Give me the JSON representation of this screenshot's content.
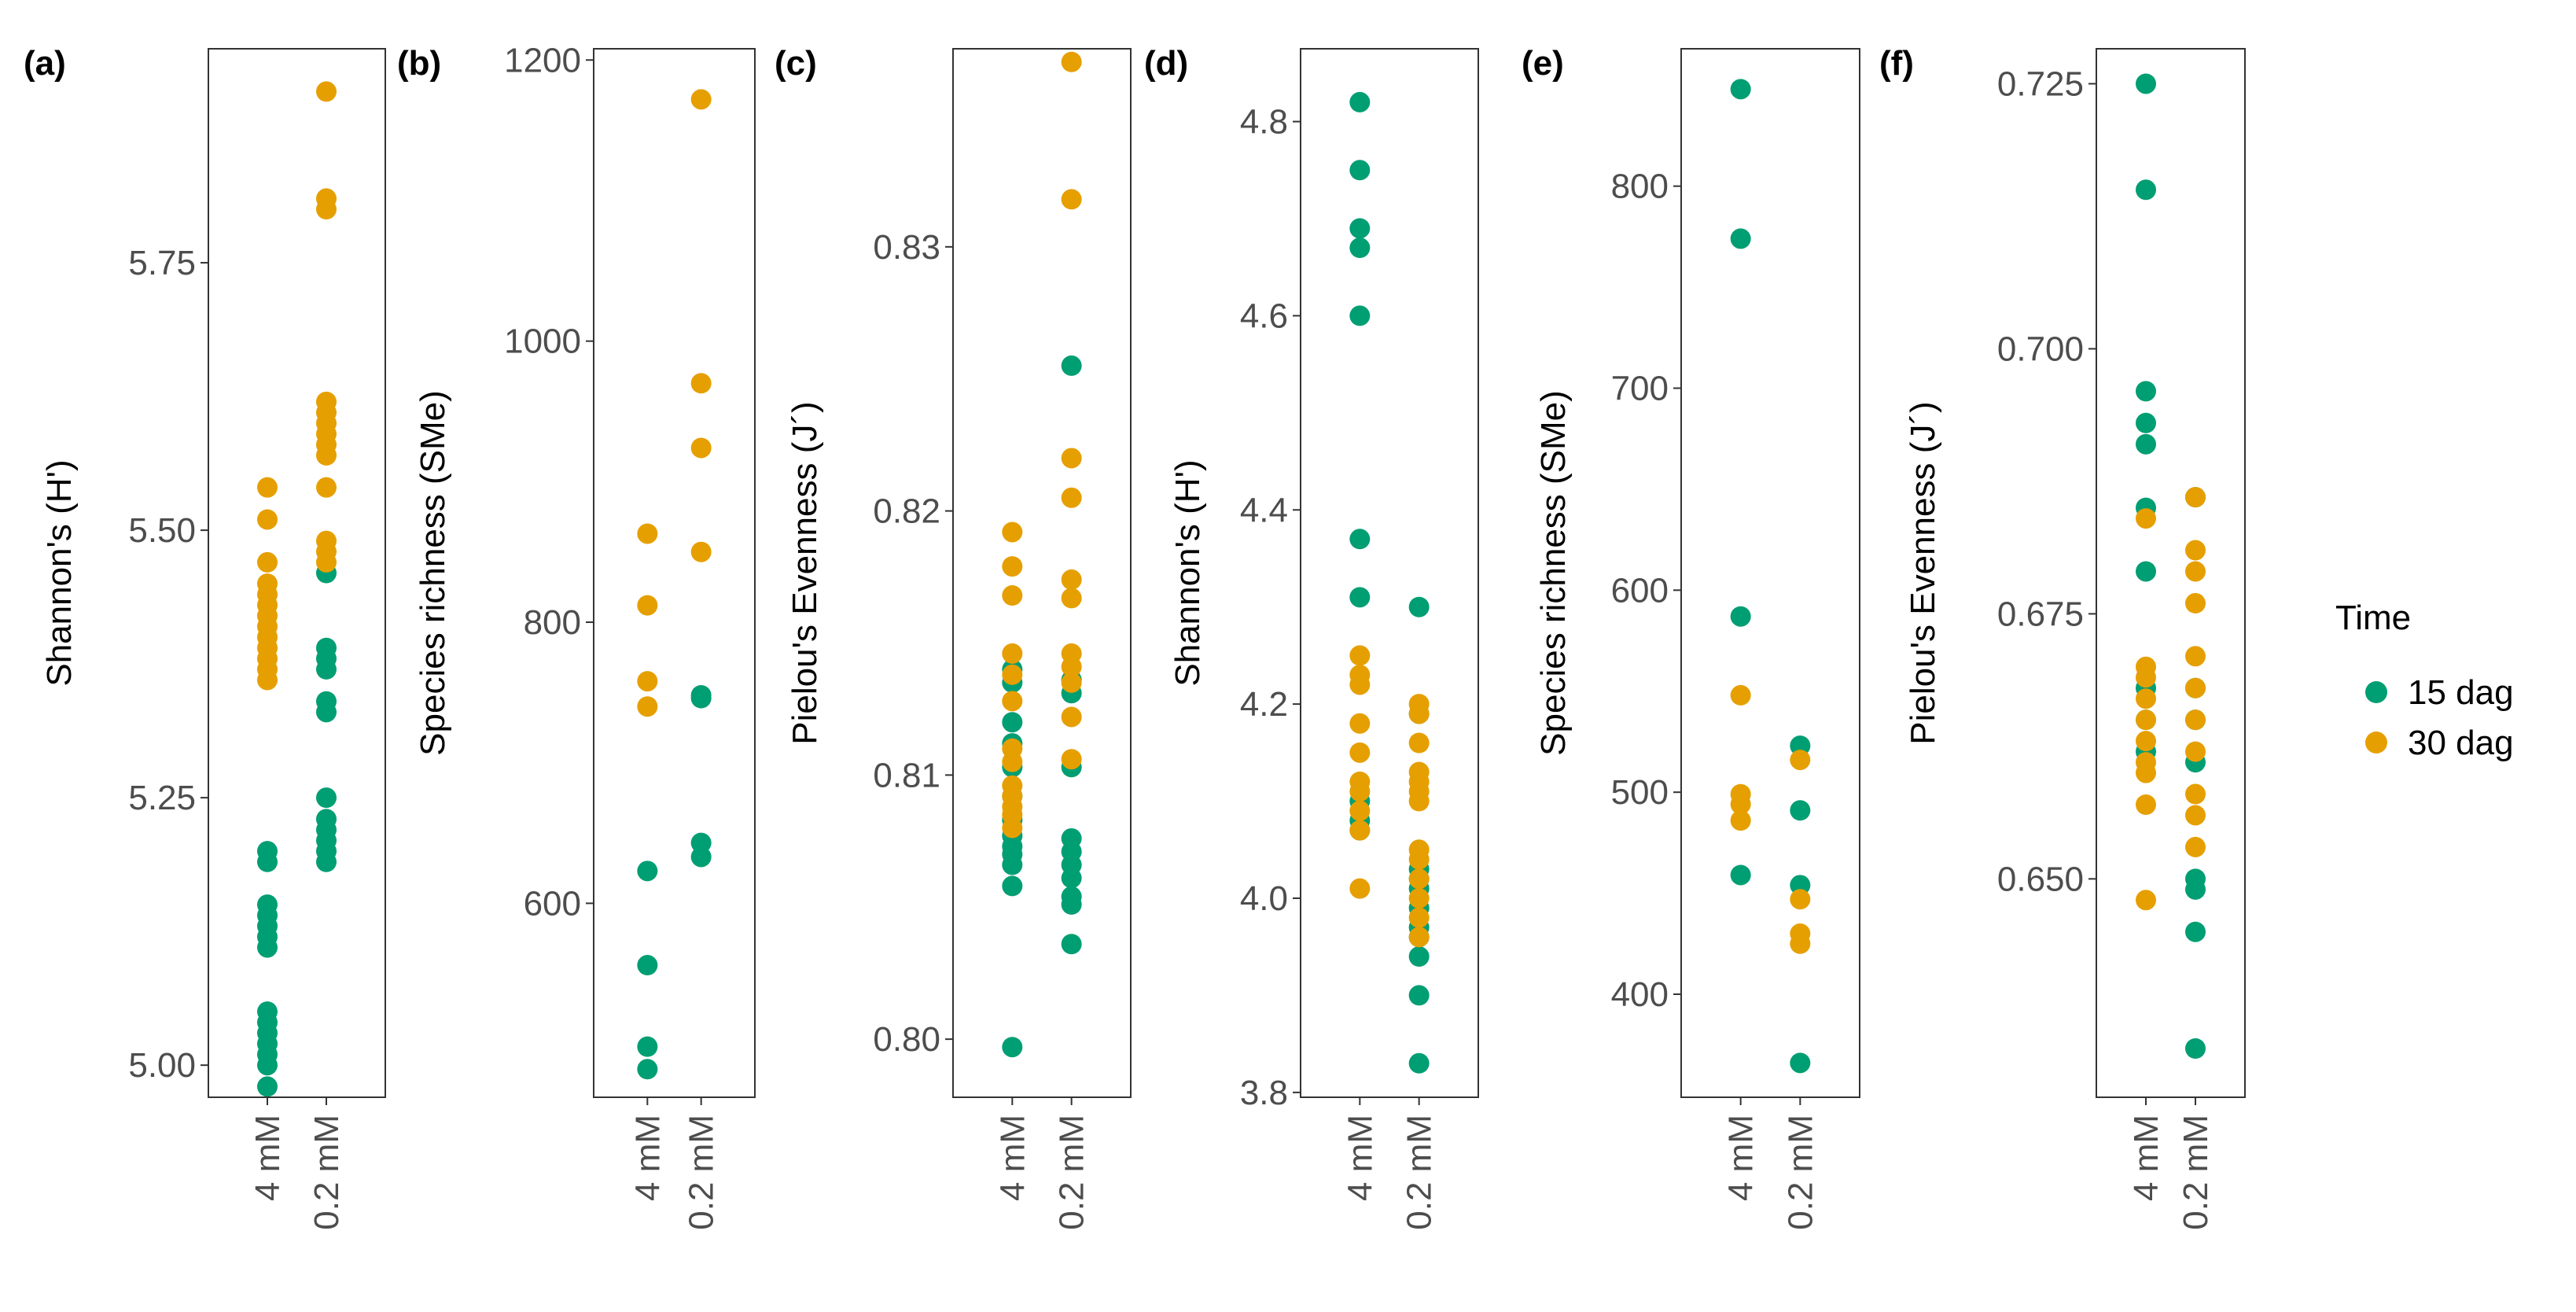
{
  "colors": {
    "15 dag": "#009e73",
    "30 dag": "#e69f00"
  },
  "legend": {
    "title": "Time",
    "entries": [
      {
        "label": "15 dag",
        "color": "#009e73"
      },
      {
        "label": "30 dag",
        "color": "#e69f00"
      }
    ]
  },
  "chart_data": [
    {
      "panel": "(a)",
      "type": "scatter",
      "ylabel": "Shannon's (H')",
      "categories": [
        "4 mM",
        "0.2 mM"
      ],
      "ylim": [
        4.97,
        5.95
      ],
      "yticks": [
        5.0,
        5.25,
        5.5,
        5.75
      ],
      "ytick_labels": [
        "5.00",
        "5.25",
        "5.50",
        "5.75"
      ],
      "series": [
        {
          "name": "15 dag",
          "values": [
            [
              4.98,
              5.0,
              5.01,
              5.02,
              5.03,
              5.04,
              5.05,
              5.11,
              5.12,
              5.13,
              5.14,
              5.15,
              5.19,
              5.2
            ],
            [
              5.19,
              5.2,
              5.21,
              5.22,
              5.23,
              5.25,
              5.33,
              5.34,
              5.37,
              5.38,
              5.39,
              5.46
            ]
          ]
        },
        {
          "name": "30 dag",
          "values": [
            [
              5.36,
              5.37,
              5.38,
              5.39,
              5.4,
              5.41,
              5.42,
              5.43,
              5.44,
              5.45,
              5.47,
              5.51,
              5.54
            ],
            [
              5.47,
              5.48,
              5.49,
              5.54,
              5.57,
              5.58,
              5.59,
              5.6,
              5.61,
              5.62,
              5.8,
              5.81,
              5.91
            ]
          ]
        }
      ]
    },
    {
      "panel": "(b)",
      "type": "scatter",
      "ylabel": "Species richness (SMe)",
      "categories": [
        "4 mM",
        "0.2 mM"
      ],
      "ylim": [
        462,
        1208
      ],
      "yticks": [
        600,
        800,
        1000,
        1200
      ],
      "ytick_labels": [
        "600",
        "800",
        "1000",
        "1200"
      ],
      "series": [
        {
          "name": "15 dag",
          "values": [
            [
              482,
              498,
              556,
              623
            ],
            [
              633,
              643,
              746,
              748
            ]
          ]
        },
        {
          "name": "30 dag",
          "values": [
            [
              740,
              758,
              812,
              863
            ],
            [
              850,
              924,
              970,
              1172
            ]
          ]
        }
      ]
    },
    {
      "panel": "(c)",
      "type": "scatter",
      "ylabel": "Pielou's Evenness (J´)",
      "categories": [
        "4 mM",
        "0.2 mM"
      ],
      "ylim": [
        0.7978,
        0.8375
      ],
      "yticks": [
        0.8,
        0.81,
        0.82,
        0.83
      ],
      "ytick_labels": [
        "0.80",
        "0.81",
        "0.82",
        "0.83"
      ],
      "series": [
        {
          "name": "15 dag",
          "values": [
            [
              0.7997,
              0.8058,
              0.8066,
              0.807,
              0.8073,
              0.8077,
              0.8083,
              0.8092,
              0.8103,
              0.8112,
              0.812,
              0.8135,
              0.814
            ],
            [
              0.8036,
              0.8051,
              0.8054,
              0.8061,
              0.8066,
              0.8071,
              0.8076,
              0.8103,
              0.8131,
              0.8136,
              0.8255
            ]
          ]
        },
        {
          "name": "30 dag",
          "values": [
            [
              0.808,
              0.8085,
              0.8088,
              0.8092,
              0.8096,
              0.8105,
              0.811,
              0.8128,
              0.8138,
              0.8146,
              0.8168,
              0.8179,
              0.8192
            ],
            [
              0.8106,
              0.8122,
              0.8135,
              0.8141,
              0.8146,
              0.8167,
              0.8174,
              0.8205,
              0.822,
              0.8318,
              0.837
            ]
          ]
        }
      ]
    },
    {
      "panel": "(d)",
      "type": "scatter",
      "ylabel": "Shannon's (H')",
      "categories": [
        "4 mM",
        "0.2 mM"
      ],
      "ylim": [
        3.795,
        4.875
      ],
      "yticks": [
        3.8,
        4.0,
        4.2,
        4.4,
        4.6,
        4.8
      ],
      "ytick_labels": [
        "3.8",
        "4.0",
        "4.2",
        "4.4",
        "4.6",
        "4.8"
      ],
      "series": [
        {
          "name": "15 dag",
          "values": [
            [
              4.07,
              4.08,
              4.1,
              4.31,
              4.37,
              4.6,
              4.67,
              4.69,
              4.75,
              4.82
            ],
            [
              3.83,
              3.9,
              3.94,
              3.96,
              3.97,
              3.99,
              4.01,
              4.02,
              4.03,
              4.19,
              4.3
            ]
          ]
        },
        {
          "name": "30 dag",
          "values": [
            [
              4.01,
              4.07,
              4.09,
              4.11,
              4.12,
              4.15,
              4.18,
              4.22,
              4.23,
              4.25
            ],
            [
              3.96,
              3.98,
              4.0,
              4.02,
              4.04,
              4.05,
              4.1,
              4.11,
              4.12,
              4.13,
              4.16,
              4.19,
              4.2
            ]
          ]
        }
      ]
    },
    {
      "panel": "(e)",
      "type": "scatter",
      "ylabel": "Species richness (SMe)",
      "categories": [
        "4 mM",
        "0.2 mM"
      ],
      "ylim": [
        349,
        868
      ],
      "yticks": [
        400,
        500,
        600,
        700,
        800
      ],
      "ytick_labels": [
        "400",
        "500",
        "600",
        "700",
        "800"
      ],
      "series": [
        {
          "name": "15 dag",
          "values": [
            [
              459,
              587,
              774,
              848
            ],
            [
              366,
              454,
              491,
              523
            ]
          ]
        },
        {
          "name": "30 dag",
          "values": [
            [
              486,
              494,
              499,
              548
            ],
            [
              425,
              430,
              447,
              516
            ]
          ]
        }
      ]
    },
    {
      "panel": "(f)",
      "type": "scatter",
      "ylabel": "Pielou's Evenness (J´)",
      "categories": [
        "4 mM",
        "0.2 mM"
      ],
      "ylim": [
        0.6294,
        0.7283
      ],
      "yticks": [
        0.65,
        0.675,
        0.7,
        0.725
      ],
      "ytick_labels": [
        "0.650",
        "0.675",
        "0.700",
        "0.725"
      ],
      "series": [
        {
          "name": "15 dag",
          "values": [
            [
              0.662,
              0.665,
              0.668,
              0.679,
              0.685,
              0.691,
              0.693,
              0.696,
              0.715,
              0.725
            ],
            [
              0.634,
              0.645,
              0.649,
              0.65,
              0.661,
              0.665,
              0.668,
              0.686
            ]
          ]
        },
        {
          "name": "30 dag",
          "values": [
            [
              0.648,
              0.657,
              0.66,
              0.661,
              0.663,
              0.665,
              0.667,
              0.669,
              0.67,
              0.684
            ],
            [
              0.653,
              0.656,
              0.658,
              0.662,
              0.665,
              0.668,
              0.671,
              0.676,
              0.679,
              0.681,
              0.686
            ]
          ]
        }
      ]
    }
  ]
}
